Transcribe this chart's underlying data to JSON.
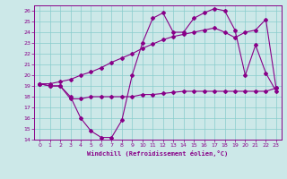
{
  "xlabel": "Windchill (Refroidissement éolien,°C)",
  "background_color": "#cce8e8",
  "grid_color": "#88cccc",
  "line_color": "#880088",
  "xlim": [
    -0.5,
    23.5
  ],
  "ylim": [
    14,
    26.5
  ],
  "yticks": [
    14,
    15,
    16,
    17,
    18,
    19,
    20,
    21,
    22,
    23,
    24,
    25,
    26
  ],
  "xticks": [
    0,
    1,
    2,
    3,
    4,
    5,
    6,
    7,
    8,
    9,
    10,
    11,
    12,
    13,
    14,
    15,
    16,
    17,
    18,
    19,
    20,
    21,
    22,
    23
  ],
  "line1_x": [
    0,
    1,
    2,
    3,
    4,
    5,
    6,
    7,
    8,
    9,
    10,
    11,
    12,
    13,
    14,
    15,
    16,
    17,
    18,
    19,
    20,
    21,
    22,
    23
  ],
  "line1_y": [
    19.2,
    19.0,
    19.0,
    18.0,
    16.0,
    14.8,
    14.2,
    14.2,
    15.8,
    20.0,
    23.0,
    25.3,
    25.8,
    24.0,
    24.0,
    25.3,
    25.8,
    26.2,
    26.0,
    24.2,
    20.0,
    22.8,
    20.2,
    18.5
  ],
  "line2_x": [
    0,
    1,
    2,
    3,
    4,
    5,
    6,
    7,
    8,
    9,
    10,
    11,
    12,
    13,
    14,
    15,
    16,
    17,
    18,
    19,
    20,
    21,
    22,
    23
  ],
  "line2_y": [
    19.2,
    19.2,
    19.4,
    19.6,
    20.0,
    20.3,
    20.7,
    21.2,
    21.6,
    22.0,
    22.5,
    22.9,
    23.3,
    23.6,
    23.8,
    24.0,
    24.2,
    24.4,
    24.0,
    23.5,
    24.0,
    24.2,
    25.2,
    18.8
  ],
  "line3_x": [
    0,
    1,
    2,
    3,
    4,
    5,
    6,
    7,
    8,
    9,
    10,
    11,
    12,
    13,
    14,
    15,
    16,
    17,
    18,
    19,
    20,
    21,
    22,
    23
  ],
  "line3_y": [
    19.2,
    19.0,
    19.0,
    17.8,
    17.8,
    18.0,
    18.0,
    18.0,
    18.0,
    18.0,
    18.2,
    18.2,
    18.3,
    18.4,
    18.5,
    18.5,
    18.5,
    18.5,
    18.5,
    18.5,
    18.5,
    18.5,
    18.5,
    18.8
  ]
}
